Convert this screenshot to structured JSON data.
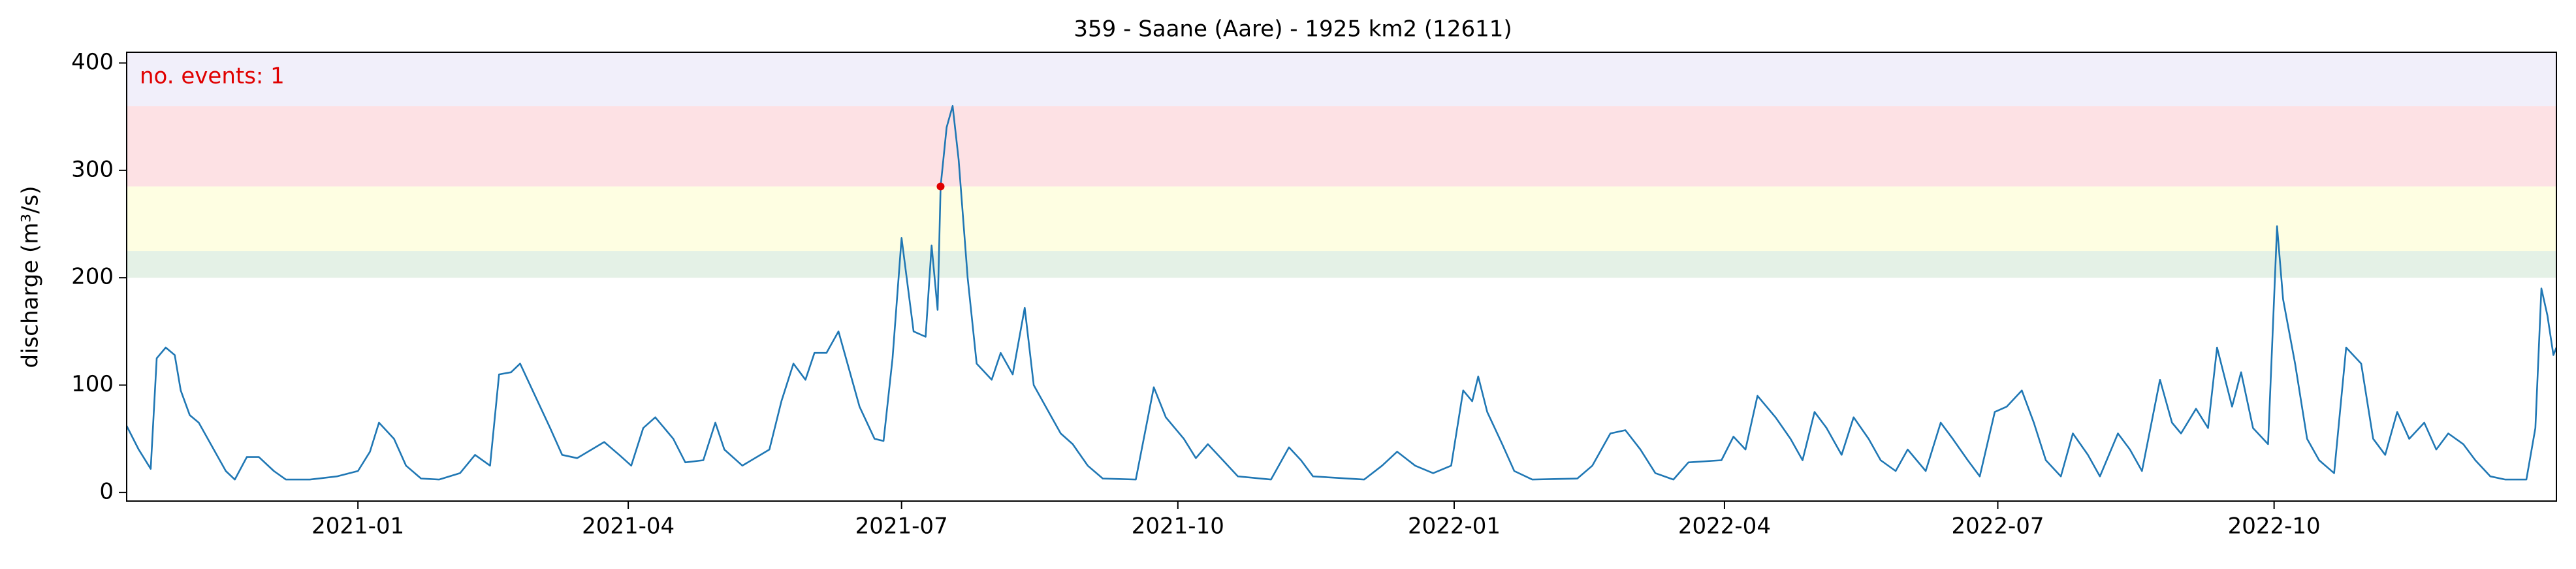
{
  "chart_data": {
    "type": "line",
    "title": "359 - Saane (Aare) - 1925 km2 (12611)",
    "ylabel": "discharge (m³/s)",
    "annotation": "no. events: 1",
    "annotation_color": "#e00000",
    "xlim": [
      "2020-10-16",
      "2023-01-03"
    ],
    "ylim": [
      -8,
      410
    ],
    "xticks": [
      "2021-01",
      "2021-04",
      "2021-07",
      "2021-10",
      "2022-01",
      "2022-04",
      "2022-07",
      "2022-10"
    ],
    "yticks": [
      0,
      100,
      200,
      300,
      400
    ],
    "bands": [
      {
        "from": 200,
        "to": 225,
        "color": "#e4f1e6"
      },
      {
        "from": 225,
        "to": 285,
        "color": "#fefee2"
      },
      {
        "from": 285,
        "to": 360,
        "color": "#fde1e4"
      },
      {
        "from": 360,
        "to": 410,
        "color": "#f1effa"
      }
    ],
    "color": "#1f77b4",
    "x": [
      "2020-10-16",
      "2020-10-20",
      "2020-10-24",
      "2020-10-26",
      "2020-10-29",
      "2020-11-01",
      "2020-11-03",
      "2020-11-06",
      "2020-11-09",
      "2020-11-14",
      "2020-11-18",
      "2020-11-21",
      "2020-11-25",
      "2020-11-29",
      "2020-12-04",
      "2020-12-08",
      "2020-12-16",
      "2020-12-25",
      "2021-01-01",
      "2021-01-05",
      "2021-01-08",
      "2021-01-13",
      "2021-01-17",
      "2021-01-22",
      "2021-01-28",
      "2021-02-04",
      "2021-02-09",
      "2021-02-14",
      "2021-02-17",
      "2021-02-21",
      "2021-02-24",
      "2021-03-01",
      "2021-03-06",
      "2021-03-10",
      "2021-03-15",
      "2021-03-24",
      "2021-03-29",
      "2021-04-02",
      "2021-04-06",
      "2021-04-10",
      "2021-04-16",
      "2021-04-20",
      "2021-04-26",
      "2021-04-30",
      "2021-05-03",
      "2021-05-09",
      "2021-05-18",
      "2021-05-22",
      "2021-05-26",
      "2021-05-30",
      "2021-06-02",
      "2021-06-06",
      "2021-06-10",
      "2021-06-13",
      "2021-06-17",
      "2021-06-22",
      "2021-06-25",
      "2021-06-28",
      "2021-07-01",
      "2021-07-05",
      "2021-07-09",
      "2021-07-11",
      "2021-07-13",
      "2021-07-14",
      "2021-07-16",
      "2021-07-18",
      "2021-07-20",
      "2021-07-23",
      "2021-07-26",
      "2021-07-31",
      "2021-08-03",
      "2021-08-07",
      "2021-08-11",
      "2021-08-14",
      "2021-08-18",
      "2021-08-23",
      "2021-08-27",
      "2021-09-01",
      "2021-09-06",
      "2021-09-17",
      "2021-09-23",
      "2021-09-27",
      "2021-10-03",
      "2021-10-07",
      "2021-10-11",
      "2021-10-16",
      "2021-10-21",
      "2021-11-01",
      "2021-11-07",
      "2021-11-11",
      "2021-11-15",
      "2021-12-02",
      "2021-12-08",
      "2021-12-13",
      "2021-12-19",
      "2021-12-25",
      "2021-12-31",
      "2022-01-04",
      "2022-01-07",
      "2022-01-09",
      "2022-01-12",
      "2022-01-17",
      "2022-01-21",
      "2022-01-27",
      "2022-02-11",
      "2022-02-16",
      "2022-02-22",
      "2022-02-27",
      "2022-03-04",
      "2022-03-09",
      "2022-03-15",
      "2022-03-20",
      "2022-03-31",
      "2022-04-04",
      "2022-04-08",
      "2022-04-12",
      "2022-04-18",
      "2022-04-23",
      "2022-04-27",
      "2022-05-01",
      "2022-05-05",
      "2022-05-10",
      "2022-05-14",
      "2022-05-19",
      "2022-05-23",
      "2022-05-28",
      "2022-06-01",
      "2022-06-07",
      "2022-06-12",
      "2022-06-16",
      "2022-06-21",
      "2022-06-25",
      "2022-06-30",
      "2022-07-04",
      "2022-07-09",
      "2022-07-13",
      "2022-07-17",
      "2022-07-22",
      "2022-07-26",
      "2022-07-31",
      "2022-08-04",
      "2022-08-10",
      "2022-08-14",
      "2022-08-18",
      "2022-08-24",
      "2022-08-28",
      "2022-08-31",
      "2022-09-05",
      "2022-09-09",
      "2022-09-12",
      "2022-09-17",
      "2022-09-20",
      "2022-09-24",
      "2022-09-29",
      "2022-10-02",
      "2022-10-04",
      "2022-10-08",
      "2022-10-12",
      "2022-10-16",
      "2022-10-21",
      "2022-10-25",
      "2022-10-30",
      "2022-11-03",
      "2022-11-07",
      "2022-11-11",
      "2022-11-15",
      "2022-11-20",
      "2022-11-24",
      "2022-11-28",
      "2022-12-03",
      "2022-12-07",
      "2022-12-12",
      "2022-12-17",
      "2022-12-24",
      "2022-12-27",
      "2022-12-29",
      "2022-12-31",
      "2023-01-02",
      "2023-01-03"
    ],
    "values": [
      62,
      40,
      22,
      125,
      135,
      128,
      95,
      72,
      65,
      40,
      20,
      12,
      33,
      33,
      20,
      12,
      12,
      15,
      20,
      38,
      65,
      50,
      25,
      13,
      12,
      18,
      35,
      25,
      110,
      112,
      120,
      90,
      60,
      35,
      32,
      47,
      35,
      25,
      60,
      70,
      50,
      28,
      30,
      65,
      40,
      25,
      40,
      85,
      120,
      105,
      130,
      130,
      150,
      120,
      80,
      50,
      48,
      125,
      237,
      150,
      145,
      230,
      170,
      285,
      340,
      360,
      310,
      200,
      120,
      105,
      130,
      110,
      172,
      100,
      80,
      55,
      45,
      25,
      13,
      12,
      98,
      70,
      50,
      32,
      45,
      30,
      15,
      12,
      42,
      30,
      15,
      12,
      25,
      38,
      25,
      18,
      25,
      95,
      85,
      108,
      75,
      45,
      20,
      12,
      13,
      25,
      55,
      58,
      40,
      18,
      12,
      28,
      30,
      52,
      40,
      90,
      70,
      50,
      30,
      75,
      60,
      35,
      70,
      50,
      30,
      20,
      40,
      20,
      65,
      50,
      30,
      15,
      75,
      80,
      95,
      65,
      30,
      15,
      55,
      35,
      15,
      55,
      40,
      20,
      105,
      65,
      55,
      78,
      60,
      135,
      80,
      112,
      60,
      45,
      248,
      180,
      120,
      50,
      30,
      18,
      135,
      120,
      50,
      35,
      75,
      50,
      65,
      40,
      55,
      45,
      30,
      15,
      12,
      12,
      60,
      190,
      165,
      128,
      135
    ],
    "events": {
      "x": [
        "2021-07-14"
      ],
      "values": [
        285
      ],
      "color": "#e00000"
    }
  }
}
